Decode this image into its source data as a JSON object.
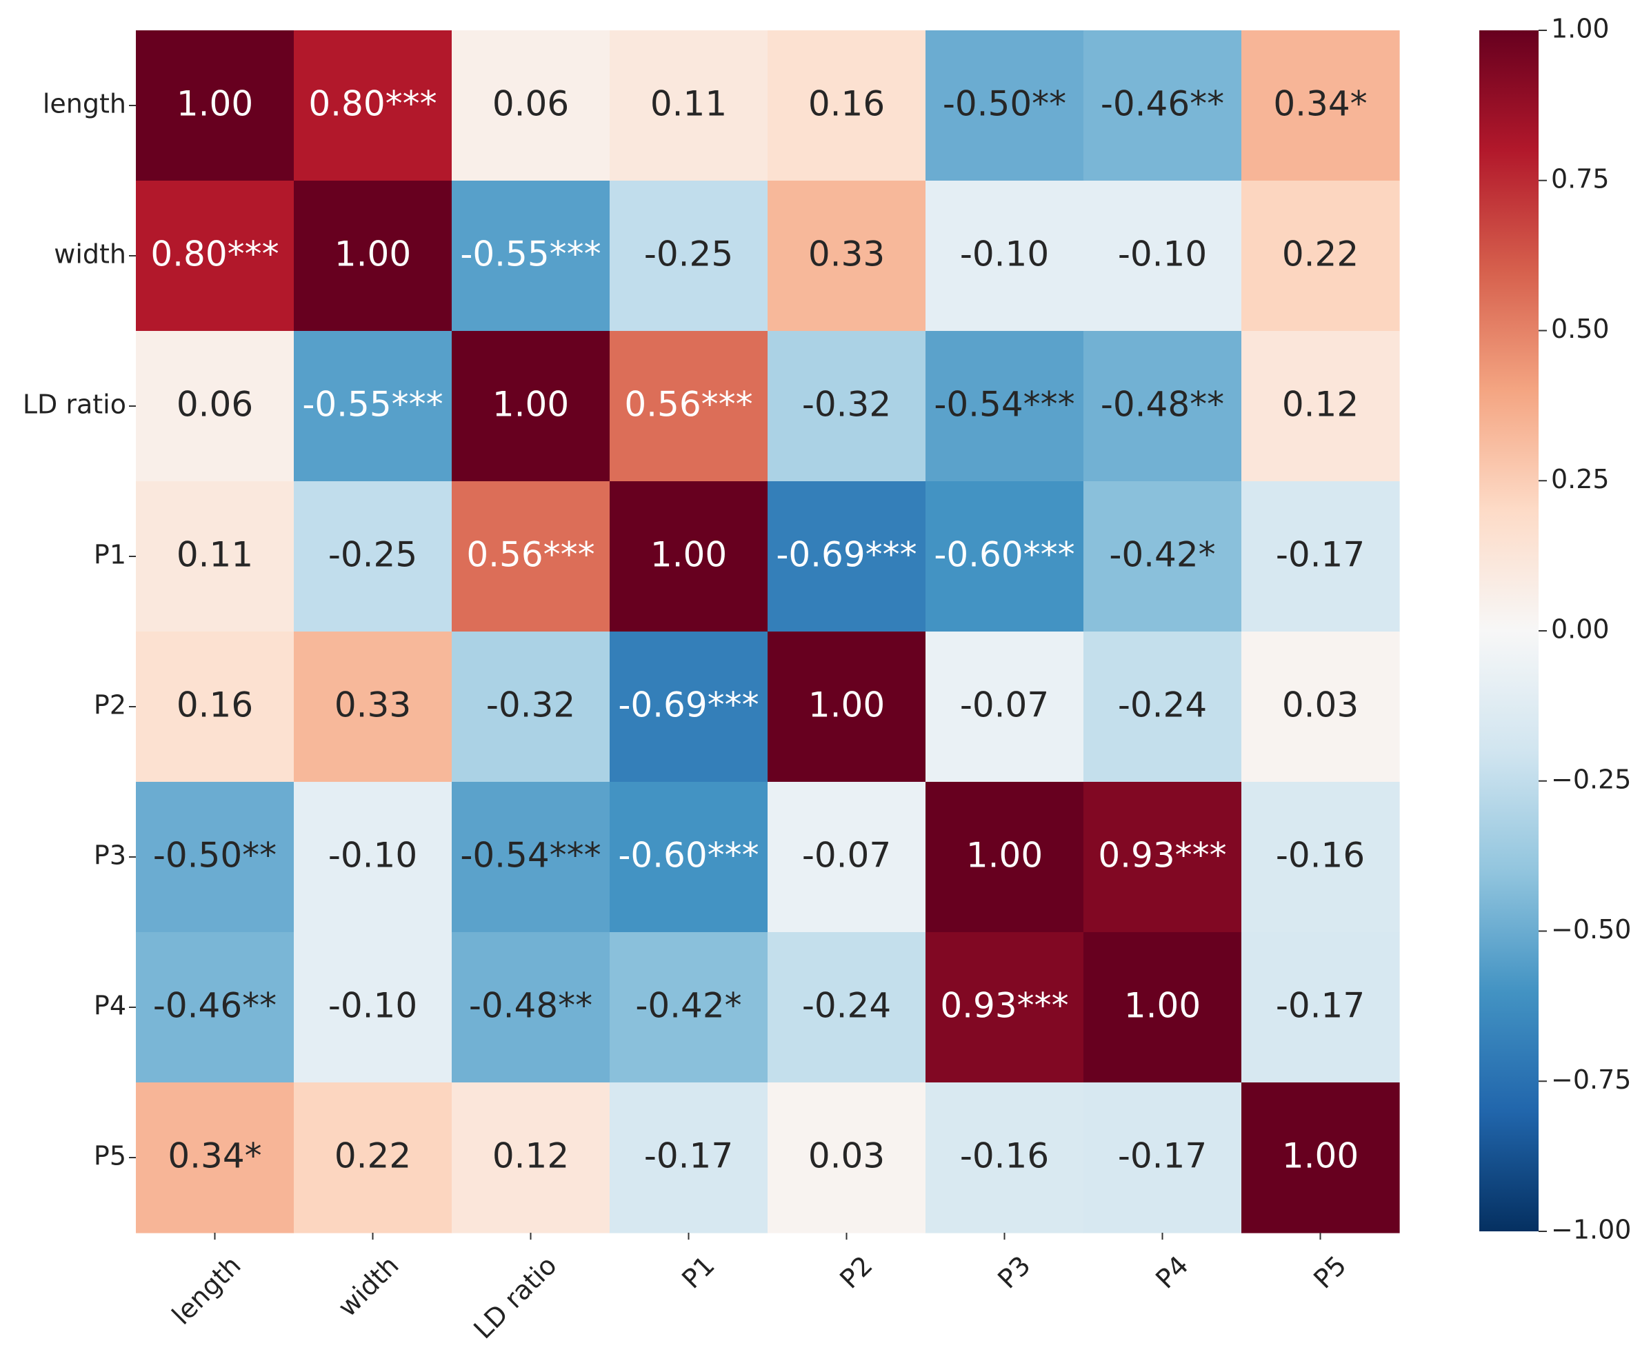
{
  "chart_data": {
    "type": "heatmap",
    "title": "",
    "xlabel": "",
    "ylabel": "",
    "row_labels": [
      "length",
      "width",
      "LD ratio",
      "P1",
      "P2",
      "P3",
      "P4",
      "P5"
    ],
    "col_labels": [
      "length",
      "width",
      "LD ratio",
      "P1",
      "P2",
      "P3",
      "P4",
      "P5"
    ],
    "values": [
      [
        1.0,
        0.8,
        0.06,
        0.11,
        0.16,
        -0.5,
        -0.46,
        0.34
      ],
      [
        0.8,
        1.0,
        -0.55,
        -0.25,
        0.33,
        -0.1,
        -0.1,
        0.22
      ],
      [
        0.06,
        -0.55,
        1.0,
        0.56,
        -0.32,
        -0.54,
        -0.48,
        0.12
      ],
      [
        0.11,
        -0.25,
        0.56,
        1.0,
        -0.69,
        -0.6,
        -0.42,
        -0.17
      ],
      [
        0.16,
        0.33,
        -0.32,
        -0.69,
        1.0,
        -0.07,
        -0.24,
        0.03
      ],
      [
        -0.5,
        -0.1,
        -0.54,
        -0.6,
        -0.07,
        1.0,
        0.93,
        -0.16
      ],
      [
        -0.46,
        -0.1,
        -0.48,
        -0.42,
        -0.24,
        0.93,
        1.0,
        -0.17
      ],
      [
        0.34,
        0.22,
        0.12,
        -0.17,
        0.03,
        -0.16,
        -0.17,
        1.0
      ]
    ],
    "annotations": [
      [
        "1.00",
        "0.80***",
        "0.06",
        "0.11",
        "0.16",
        "-0.50**",
        "-0.46**",
        "0.34*"
      ],
      [
        "0.80***",
        "1.00",
        "-0.55***",
        "-0.25",
        "0.33",
        "-0.10",
        "-0.10",
        "0.22"
      ],
      [
        "0.06",
        "-0.55***",
        "1.00",
        "0.56***",
        "-0.32",
        "-0.54***",
        "-0.48**",
        "0.12"
      ],
      [
        "0.11",
        "-0.25",
        "0.56***",
        "1.00",
        "-0.69***",
        "-0.60***",
        "-0.42*",
        "-0.17"
      ],
      [
        "0.16",
        "0.33",
        "-0.32",
        "-0.69***",
        "1.00",
        "-0.07",
        "-0.24",
        "0.03"
      ],
      [
        "-0.50**",
        "-0.10",
        "-0.54***",
        "-0.60***",
        "-0.07",
        "1.00",
        "0.93***",
        "-0.16"
      ],
      [
        "-0.46**",
        "-0.10",
        "-0.48**",
        "-0.42*",
        "-0.24",
        "0.93***",
        "1.00",
        "-0.17"
      ],
      [
        "0.34*",
        "0.22",
        "0.12",
        "-0.17",
        "0.03",
        "-0.16",
        "-0.17",
        "1.00"
      ]
    ],
    "colorbar": {
      "min": -1.0,
      "max": 1.0,
      "ticks": [
        1.0,
        0.75,
        0.5,
        0.25,
        0.0,
        -0.25,
        -0.5,
        -0.75,
        -1.0
      ],
      "tick_labels": [
        "1.00",
        "0.75",
        "0.50",
        "0.25",
        "0.00",
        "−0.25",
        "−0.50",
        "−0.75",
        "−1.00"
      ],
      "colormap": "RdBu_r",
      "stops": [
        "#053061",
        "#2166ac",
        "#4393c3",
        "#92c5de",
        "#d1e5f0",
        "#f7f7f7",
        "#fddbc7",
        "#f4a582",
        "#d6604d",
        "#b2182b",
        "#67001f"
      ]
    }
  }
}
